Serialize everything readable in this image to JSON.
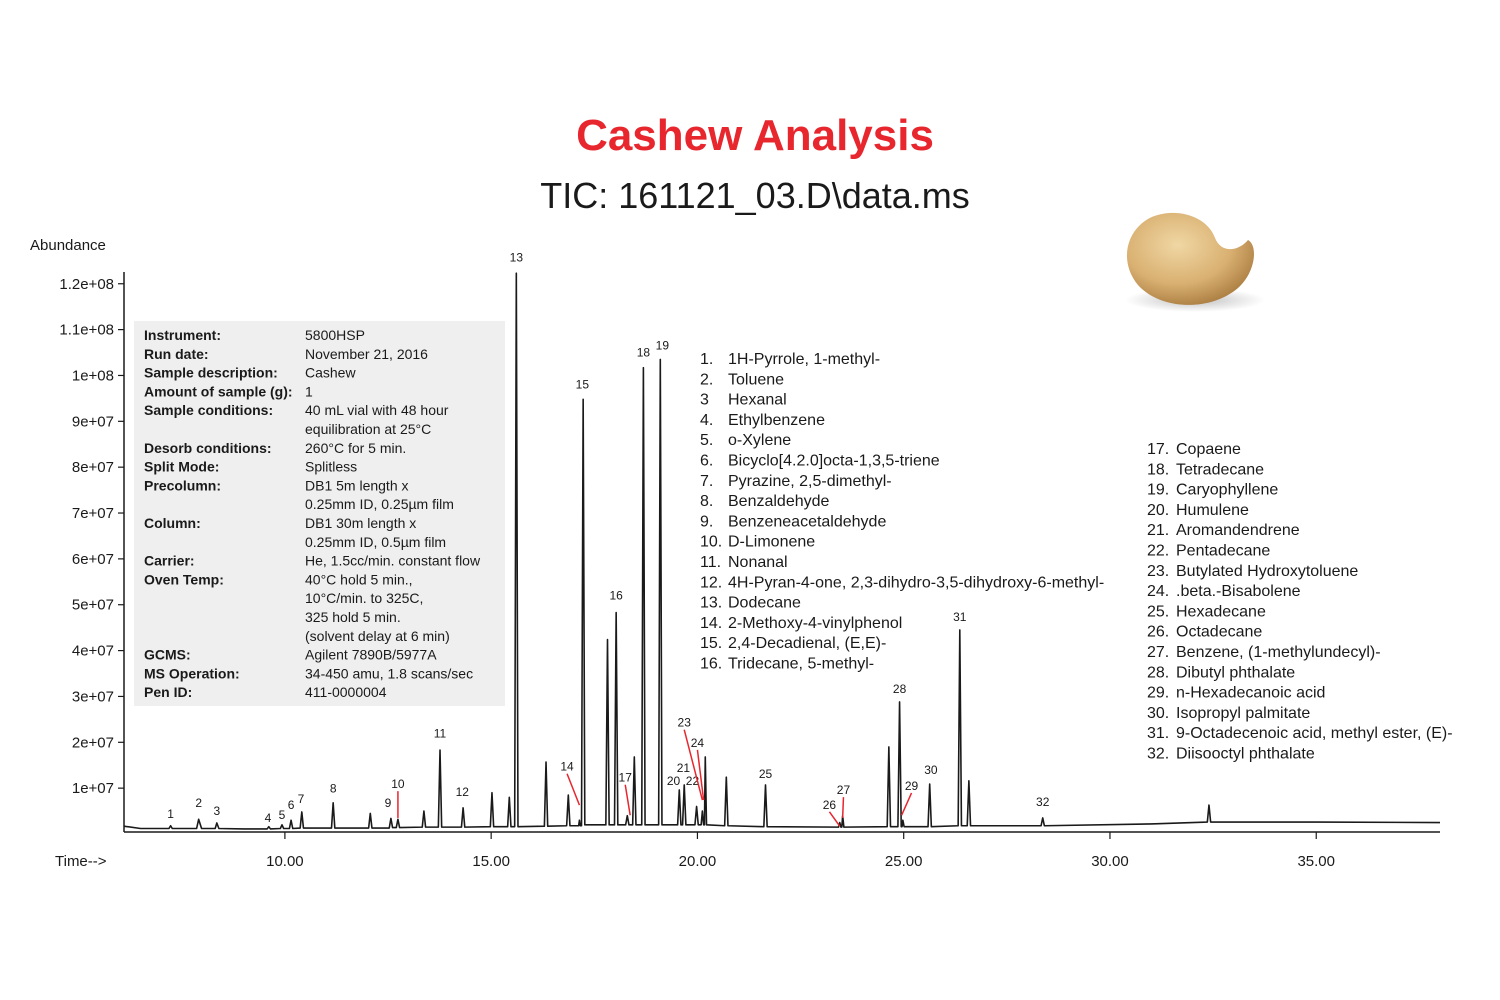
{
  "chart_data": {
    "type": "line",
    "title": "Cashew Analysis",
    "subtitle": "TIC: 161121_03.D\\data.ms",
    "y_label": "Abundance",
    "x_label": "Time-->",
    "color": "#1a1a1a",
    "title_color": "#e8262e",
    "leader_color": "#e8262e",
    "xlim": [
      6.1,
      38
    ],
    "ylim": [
      0,
      123000000
    ],
    "xticks": [
      {
        "value": 10,
        "label": "10.00"
      },
      {
        "value": 15,
        "label": "15.00"
      },
      {
        "value": 20,
        "label": "20.00"
      },
      {
        "value": 25,
        "label": "25.00"
      },
      {
        "value": 30,
        "label": "30.00"
      },
      {
        "value": 35,
        "label": "35.00"
      }
    ],
    "yticks": [
      {
        "value": 10000000,
        "label": "1e+07"
      },
      {
        "value": 20000000,
        "label": "2e+07"
      },
      {
        "value": 30000000,
        "label": "3e+07"
      },
      {
        "value": 40000000,
        "label": "4e+07"
      },
      {
        "value": 50000000,
        "label": "5e+07"
      },
      {
        "value": 60000000,
        "label": "6e+07"
      },
      {
        "value": 70000000,
        "label": "7e+07"
      },
      {
        "value": 80000000,
        "label": "8e+07"
      },
      {
        "value": 90000000,
        "label": "9e+07"
      },
      {
        "value": 100000000,
        "label": "1e+08"
      },
      {
        "value": 110000000,
        "label": "1.1e+08"
      },
      {
        "value": 120000000,
        "label": "1.2e+08"
      }
    ],
    "x": [
      6.1,
      6.5,
      7.19,
      7.23,
      7.27,
      7.86,
      7.91,
      7.98,
      8.31,
      8.35,
      8.4,
      9.0,
      9.57,
      9.61,
      9.65,
      9.89,
      9.93,
      9.97,
      10.11,
      10.15,
      10.19,
      10.37,
      10.41,
      10.45,
      11.13,
      11.17,
      11.21,
      12.03,
      12.07,
      12.11,
      12.53,
      12.57,
      12.61,
      12.7,
      12.74,
      12.78,
      13.33,
      13.37,
      13.41,
      13.72,
      13.76,
      13.8,
      14.28,
      14.32,
      14.36,
      14.98,
      15.02,
      15.06,
      15.4,
      15.44,
      15.48,
      15.57,
      15.61,
      15.65,
      16.29,
      16.33,
      16.37,
      16.83,
      16.87,
      16.91,
      17.12,
      17.14,
      17.16,
      17.19,
      17.23,
      17.27,
      17.78,
      17.82,
      17.86,
      17.99,
      18.03,
      18.07,
      18.26,
      18.3,
      18.34,
      18.43,
      18.47,
      18.51,
      18.65,
      18.69,
      18.73,
      19.06,
      19.1,
      19.14,
      19.52,
      19.56,
      19.6,
      19.64,
      19.68,
      19.72,
      19.94,
      19.98,
      20.02,
      20.09,
      20.12,
      20.15,
      20.17,
      20.19,
      20.22,
      20.66,
      20.7,
      20.74,
      21.61,
      21.65,
      21.69,
      23.42,
      23.45,
      23.48,
      23.5,
      23.52,
      23.55,
      24.6,
      24.64,
      24.68,
      24.86,
      24.9,
      24.94,
      24.96,
      24.98,
      25.01,
      25.59,
      25.63,
      25.67,
      26.32,
      26.36,
      26.4,
      26.54,
      26.58,
      26.62,
      28.33,
      28.37,
      28.41,
      31.0,
      32.36,
      32.4,
      32.44,
      35.0,
      38.0
    ],
    "values": [
      1700000,
      1200000,
      1200000,
      1800000,
      1200000,
      1200000,
      3200000,
      1200000,
      1200000,
      2400000,
      1200000,
      1100000,
      1100000,
      1600000,
      1100000,
      1200000,
      2000000,
      1200000,
      1200000,
      3000000,
      1200000,
      1300000,
      4800000,
      1300000,
      1300000,
      6800000,
      1300000,
      1300000,
      4500000,
      1300000,
      1300000,
      3400000,
      1400000,
      1400000,
      3200000,
      1400000,
      1500000,
      5000000,
      1500000,
      1500000,
      18300000,
      1500000,
      1500000,
      5700000,
      1500000,
      1600000,
      9000000,
      1600000,
      1600000,
      8000000,
      1600000,
      1600000,
      122300000,
      1600000,
      1700000,
      15700000,
      1700000,
      1800000,
      8500000,
      1800000,
      1800000,
      3000000,
      1800000,
      1800000,
      94800000,
      2000000,
      2000000,
      42400000,
      2000000,
      2000000,
      48300000,
      2000000,
      2000000,
      4000000,
      2000000,
      2000000,
      16800000,
      2000000,
      2000000,
      101700000,
      2000000,
      2000000,
      103500000,
      2000000,
      2000000,
      9600000,
      2000000,
      2000000,
      10700000,
      2000000,
      2000000,
      6000000,
      2000000,
      2000000,
      5000000,
      2000000,
      2000000,
      16800000,
      2000000,
      1800000,
      12400000,
      1800000,
      1600000,
      10700000,
      1600000,
      1500000,
      2500000,
      1500000,
      1500000,
      4000000,
      1500000,
      1600000,
      19000000,
      1600000,
      1600000,
      28800000,
      1600000,
      1600000,
      3000000,
      1600000,
      1600000,
      10900000,
      1600000,
      1800000,
      44500000,
      1800000,
      1800000,
      11600000,
      1800000,
      1800000,
      3500000,
      1800000,
      2200000,
      2600000,
      6300000,
      2600000,
      2600000,
      2500000
    ],
    "peak_labels": [
      {
        "label": "1",
        "x": 7.23,
        "y": 3500000
      },
      {
        "label": "2",
        "x": 7.91,
        "y": 5900000
      },
      {
        "label": "3",
        "x": 8.35,
        "y": 4100000
      },
      {
        "label": "4",
        "x": 9.59,
        "y": 2600000
      },
      {
        "label": "5",
        "x": 9.93,
        "y": 3300000
      },
      {
        "label": "6",
        "x": 10.15,
        "y": 5500000
      },
      {
        "label": "7",
        "x": 10.39,
        "y": 6800000
      },
      {
        "label": "8",
        "x": 11.17,
        "y": 9000000
      },
      {
        "label": "9",
        "x": 12.5,
        "y": 5900000
      },
      {
        "label": "10",
        "x": 12.74,
        "y": 10000000,
        "leader_to": [
          12.74,
          3500000
        ]
      },
      {
        "label": "11",
        "x": 13.76,
        "y": 21000000
      },
      {
        "label": "12",
        "x": 14.3,
        "y": 8300000
      },
      {
        "label": "13",
        "x": 15.61,
        "y": 124900000
      },
      {
        "label": "14",
        "x": 16.84,
        "y": 13800000,
        "leader_to": [
          17.14,
          6300000
        ]
      },
      {
        "label": "15",
        "x": 17.21,
        "y": 97200000
      },
      {
        "label": "16",
        "x": 18.03,
        "y": 51100000
      },
      {
        "label": "17",
        "x": 18.25,
        "y": 11400000,
        "leader_to": [
          18.37,
          4100000
        ]
      },
      {
        "label": "18",
        "x": 18.69,
        "y": 104100000
      },
      {
        "label": "19",
        "x": 19.15,
        "y": 105700000
      },
      {
        "label": "20",
        "x": 19.42,
        "y": 10700000
      },
      {
        "label": "21",
        "x": 19.66,
        "y": 13500000
      },
      {
        "label": "22",
        "x": 19.88,
        "y": 10700000
      },
      {
        "label": "23",
        "x": 19.68,
        "y": 23400000,
        "leader_to": [
          20.12,
          7400000
        ]
      },
      {
        "label": "24",
        "x": 20.0,
        "y": 19000000,
        "leader_to": [
          20.15,
          7400000
        ]
      },
      {
        "label": "25",
        "x": 21.65,
        "y": 12200000
      },
      {
        "label": "26",
        "x": 23.2,
        "y": 5500000,
        "leader_to": [
          23.45,
          1700000
        ]
      },
      {
        "label": "27",
        "x": 23.54,
        "y": 8700000,
        "leader_to": [
          23.52,
          3500000
        ]
      },
      {
        "label": "28",
        "x": 24.9,
        "y": 30800000
      },
      {
        "label": "29",
        "x": 25.19,
        "y": 9600000,
        "leader_to": [
          24.95,
          4100000
        ]
      },
      {
        "label": "30",
        "x": 25.66,
        "y": 13100000
      },
      {
        "label": "31",
        "x": 26.36,
        "y": 46500000
      },
      {
        "label": "32",
        "x": 28.37,
        "y": 6100000
      }
    ],
    "info": [
      {
        "label": "Instrument:",
        "value": [
          "5800HSP"
        ]
      },
      {
        "label": "Run date:",
        "value": [
          "November 21, 2016"
        ]
      },
      {
        "label": "Sample description:",
        "value": [
          "Cashew"
        ]
      },
      {
        "label": "Amount of sample (g):",
        "value": [
          "1"
        ]
      },
      {
        "label": "Sample conditions:",
        "value": [
          "40 mL vial with 48 hour",
          "equilibration at 25°C"
        ]
      },
      {
        "label": "Desorb conditions:",
        "value": [
          "260°C for 5 min."
        ]
      },
      {
        "label": "Split Mode:",
        "value": [
          "Splitless"
        ]
      },
      {
        "label": "Precolumn:",
        "value": [
          "DB1 5m length x",
          "0.25mm ID, 0.25µm film"
        ]
      },
      {
        "label": "Column:",
        "value": [
          "DB1 30m length x",
          "0.25mm ID, 0.5µm film"
        ]
      },
      {
        "label": "Carrier:",
        "value": [
          "He, 1.5cc/min. constant flow"
        ]
      },
      {
        "label": "Oven Temp:",
        "value": [
          "40°C hold 5 min.,",
          "10°C/min. to 325C,",
          "325 hold 5 min.",
          "(solvent delay at 6 min)"
        ]
      },
      {
        "label": "GCMS:",
        "value": [
          "Agilent 7890B/5977A"
        ]
      },
      {
        "label": "MS Operation:",
        "value": [
          "34-450 amu, 1.8 scans/sec"
        ]
      },
      {
        "label": "Pen ID:",
        "value": [
          "411-0000004"
        ]
      }
    ],
    "compounds_left": [
      {
        "num": "1.",
        "name": "1H-Pyrrole, 1-methyl-"
      },
      {
        "num": "2.",
        "name": "Toluene"
      },
      {
        "num": "3",
        "name": "Hexanal"
      },
      {
        "num": "4.",
        "name": "Ethylbenzene"
      },
      {
        "num": "5.",
        "name": "o-Xylene"
      },
      {
        "num": "6.",
        "name": "Bicyclo[4.2.0]octa-1,3,5-triene"
      },
      {
        "num": "7.",
        "name": "Pyrazine, 2,5-dimethyl-"
      },
      {
        "num": "8.",
        "name": "Benzaldehyde"
      },
      {
        "num": "9.",
        "name": "Benzeneacetaldehyde"
      },
      {
        "num": "10.",
        "name": "D-Limonene"
      },
      {
        "num": "11.",
        "name": "Nonanal"
      },
      {
        "num": "12.",
        "name": "4H-Pyran-4-one, 2,3-dihydro-3,5-dihydroxy-6-methyl-"
      },
      {
        "num": "13.",
        "name": "Dodecane"
      },
      {
        "num": "14.",
        "name": "2-Methoxy-4-vinylphenol"
      },
      {
        "num": "15.",
        "name": "2,4-Decadienal, (E,E)-"
      },
      {
        "num": "16.",
        "name": "Tridecane, 5-methyl-"
      }
    ],
    "compounds_right": [
      {
        "num": "17.",
        "name": "Copaene"
      },
      {
        "num": "18.",
        "name": "Tetradecane"
      },
      {
        "num": "19.",
        "name": "Caryophyllene"
      },
      {
        "num": "20.",
        "name": "Humulene"
      },
      {
        "num": "21.",
        "name": "Aromandendrene"
      },
      {
        "num": "22.",
        "name": "Pentadecane"
      },
      {
        "num": "23.",
        "name": "Butylated Hydroxytoluene"
      },
      {
        "num": "24.",
        "name": ".beta.-Bisabolene"
      },
      {
        "num": "25.",
        "name": "Hexadecane"
      },
      {
        "num": "26.",
        "name": "Octadecane"
      },
      {
        "num": "27.",
        "name": "Benzene, (1-methylundecyl)-"
      },
      {
        "num": "28.",
        "name": "Dibutyl phthalate"
      },
      {
        "num": "29.",
        "name": "n-Hexadecanoic acid"
      },
      {
        "num": "30.",
        "name": "Isopropyl palmitate"
      },
      {
        "num": "31.",
        "name": "9-Octadecenoic acid, methyl ester, (E)-"
      },
      {
        "num": "32.",
        "name": "Diisooctyl phthalate"
      }
    ]
  }
}
